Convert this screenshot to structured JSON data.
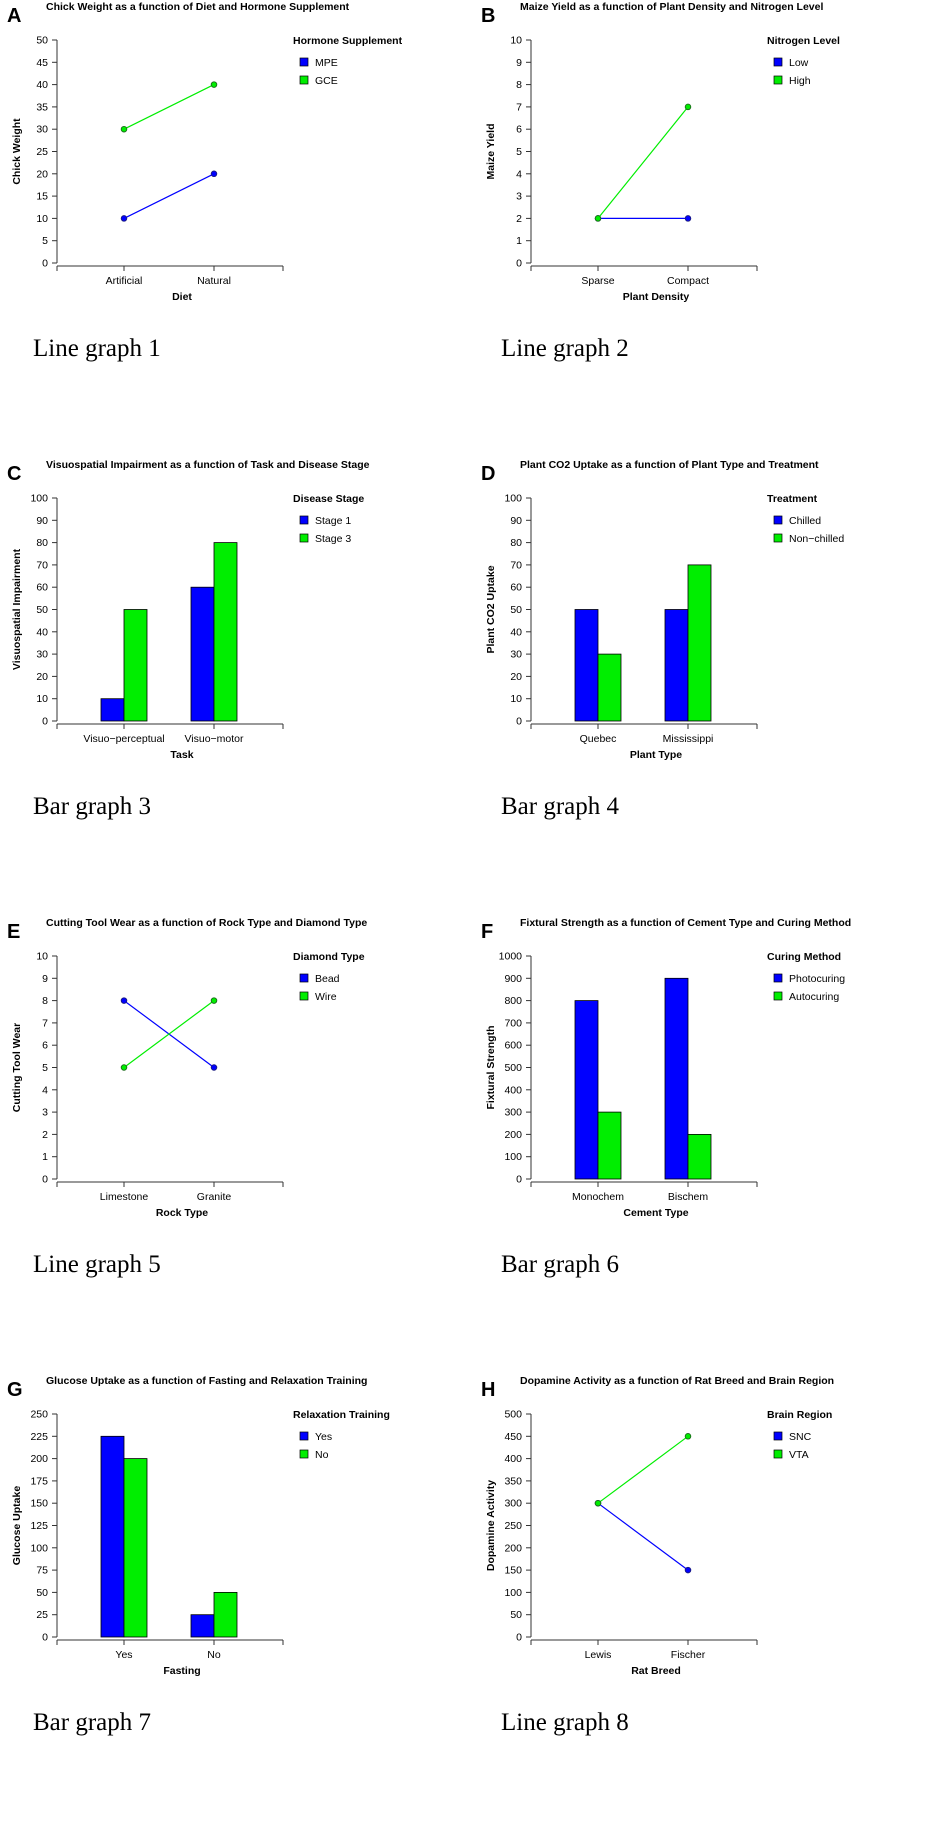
{
  "colors": {
    "series1": "#0000ff",
    "series2": "#00ee00",
    "series1_stroke": "#1a1a80",
    "series2_stroke": "#1a6b1a",
    "axis": "#333333"
  },
  "chart_data": [
    {
      "letter": "A",
      "type": "line",
      "title": "Chick Weight as a function of Diet and Hormone Supplement",
      "xlabel": "Diet",
      "ylabel": "Chick Weight",
      "categories": [
        "Artificial",
        "Natural"
      ],
      "ylim": [
        0,
        50
      ],
      "yticks": [
        "0",
        "5",
        "10",
        "15",
        "20",
        "25",
        "30",
        "35",
        "40",
        "45",
        "50"
      ],
      "legend_title": "Hormone Supplement",
      "series": [
        {
          "name": "MPE",
          "values": [
            10,
            20
          ]
        },
        {
          "name": "GCE",
          "values": [
            30,
            40
          ]
        }
      ],
      "caption": "Line graph 1"
    },
    {
      "letter": "B",
      "type": "line",
      "title": "Maize Yield as a function of Plant Density and Nitrogen Level",
      "xlabel": "Plant Density",
      "ylabel": "Maize Yield",
      "categories": [
        "Sparse",
        "Compact"
      ],
      "ylim": [
        0,
        10
      ],
      "yticks": [
        "0",
        "1",
        "2",
        "3",
        "4",
        "5",
        "6",
        "7",
        "8",
        "9",
        "10"
      ],
      "legend_title": "Nitrogen Level",
      "series": [
        {
          "name": "Low",
          "values": [
            2,
            2
          ]
        },
        {
          "name": "High",
          "values": [
            2,
            7
          ]
        }
      ],
      "caption": "Line graph 2"
    },
    {
      "letter": "C",
      "type": "bar",
      "title": "Visuospatial Impairment as a function of Task and Disease Stage",
      "xlabel": "Task",
      "ylabel": "Visuospatial Impairment",
      "categories": [
        "Visuo−perceptual",
        "Visuo−motor"
      ],
      "ylim": [
        0,
        100
      ],
      "yticks": [
        "0",
        "10",
        "20",
        "30",
        "40",
        "50",
        "60",
        "70",
        "80",
        "90",
        "100"
      ],
      "legend_title": "Disease Stage",
      "series": [
        {
          "name": "Stage 1",
          "values": [
            10,
            60
          ]
        },
        {
          "name": "Stage 3",
          "values": [
            50,
            80
          ]
        }
      ],
      "caption": "Bar graph 3"
    },
    {
      "letter": "D",
      "type": "bar",
      "title": "Plant CO2 Uptake as a function of Plant Type and Treatment",
      "xlabel": "Plant Type",
      "ylabel": "Plant CO2 Uptake",
      "categories": [
        "Quebec",
        "Mississippi"
      ],
      "ylim": [
        0,
        100
      ],
      "yticks": [
        "0",
        "10",
        "20",
        "30",
        "40",
        "50",
        "60",
        "70",
        "80",
        "90",
        "100"
      ],
      "legend_title": "Treatment",
      "series": [
        {
          "name": "Chilled",
          "values": [
            50,
            50
          ]
        },
        {
          "name": "Non−chilled",
          "values": [
            30,
            70
          ]
        }
      ],
      "caption": "Bar graph 4"
    },
    {
      "letter": "E",
      "type": "line",
      "title": "Cutting Tool Wear as a function of Rock Type and Diamond Type",
      "xlabel": "Rock Type",
      "ylabel": "Cutting Tool Wear",
      "categories": [
        "Limestone",
        "Granite"
      ],
      "ylim": [
        0,
        10
      ],
      "yticks": [
        "0",
        "1",
        "2",
        "3",
        "4",
        "5",
        "6",
        "7",
        "8",
        "9",
        "10"
      ],
      "legend_title": "Diamond Type",
      "series": [
        {
          "name": "Bead",
          "values": [
            8,
            5
          ]
        },
        {
          "name": "Wire",
          "values": [
            5,
            8
          ]
        }
      ],
      "caption": "Line graph 5"
    },
    {
      "letter": "F",
      "type": "bar",
      "title": "Fixtural Strength as a function of Cement Type and Curing Method",
      "xlabel": "Cement Type",
      "ylabel": "Fixtural Strength",
      "categories": [
        "Monochem",
        "Bischem"
      ],
      "ylim": [
        0,
        1000
      ],
      "yticks": [
        "0",
        "100",
        "200",
        "300",
        "400",
        "500",
        "600",
        "700",
        "800",
        "900",
        "1000"
      ],
      "legend_title": "Curing Method",
      "series": [
        {
          "name": "Photocuring",
          "values": [
            800,
            900
          ]
        },
        {
          "name": "Autocuring",
          "values": [
            300,
            200
          ]
        }
      ],
      "caption": "Bar graph 6"
    },
    {
      "letter": "G",
      "type": "bar",
      "title": "Glucose Uptake as a function of Fasting and Relaxation Training",
      "xlabel": "Fasting",
      "ylabel": "Glucose Uptake",
      "categories": [
        "Yes",
        "No"
      ],
      "ylim": [
        0,
        250
      ],
      "yticks": [
        "0",
        "25",
        "50",
        "75",
        "100",
        "125",
        "150",
        "175",
        "200",
        "225",
        "250"
      ],
      "legend_title": "Relaxation Training",
      "series": [
        {
          "name": "Yes",
          "values": [
            225,
            25
          ]
        },
        {
          "name": "No",
          "values": [
            200,
            50
          ]
        }
      ],
      "caption": "Bar graph 7"
    },
    {
      "letter": "H",
      "type": "line",
      "title": "Dopamine Activity as a function of Rat Breed and Brain Region",
      "xlabel": "Rat Breed",
      "ylabel": "Dopamine Activity",
      "categories": [
        "Lewis",
        "Fischer"
      ],
      "ylim": [
        0,
        500
      ],
      "yticks": [
        "0",
        "50",
        "100",
        "150",
        "200",
        "250",
        "300",
        "350",
        "400",
        "450",
        "500"
      ],
      "legend_title": "Brain Region",
      "series": [
        {
          "name": "SNC",
          "values": [
            300,
            150
          ]
        },
        {
          "name": "VTA",
          "values": [
            300,
            450
          ]
        }
      ],
      "caption": "Line graph 8"
    }
  ]
}
